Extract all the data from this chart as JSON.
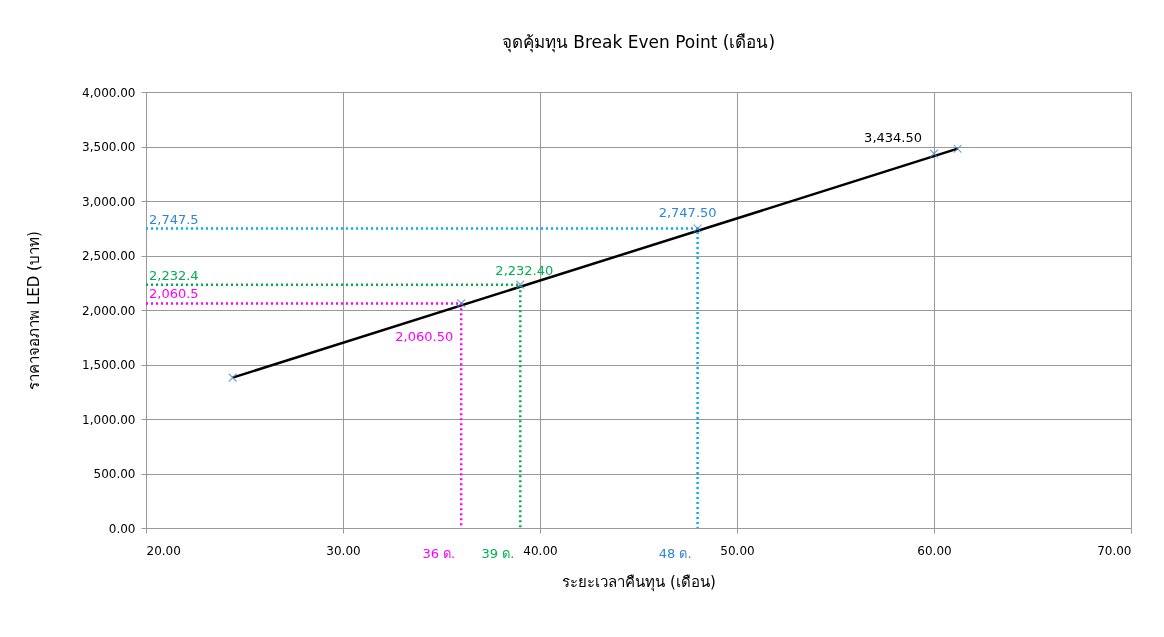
{
  "chart_data": {
    "type": "scatter",
    "title": "จุดคุ้มทุน Break Even Point (เดือน)",
    "xlabel": "ระยะเวลาคืนทุน (เดือน)",
    "ylabel": "ราคาจอภาพ LED (บาท)",
    "xlim": [
      20,
      70
    ],
    "xticks": [
      {
        "value": 20,
        "label": "20.00"
      },
      {
        "value": 30,
        "label": "30.00"
      },
      {
        "value": 40,
        "label": "40.00"
      },
      {
        "value": 50,
        "label": "50.00"
      },
      {
        "value": 60,
        "label": "60.00"
      },
      {
        "value": 70,
        "label": "70.00"
      }
    ],
    "ylim": [
      0,
      4000
    ],
    "yticks": [
      {
        "value": 0,
        "label": "0.00"
      },
      {
        "value": 500,
        "label": "500.00"
      },
      {
        "value": 1000,
        "label": "1,000.00"
      },
      {
        "value": 1500,
        "label": "1,500.00"
      },
      {
        "value": 2000,
        "label": "2,000.00"
      },
      {
        "value": 2500,
        "label": "2,500.00"
      },
      {
        "value": 3000,
        "label": "3,000.00"
      },
      {
        "value": 3500,
        "label": "3,500.00"
      },
      {
        "value": 4000,
        "label": "4,000.00"
      }
    ],
    "grid": true,
    "series": [
      {
        "type": "line",
        "color": "#000000",
        "x": [
          24.4,
          61.2
        ],
        "values": [
          1380,
          3480
        ],
        "line_style": "solid",
        "marker": "none"
      },
      {
        "type": "line",
        "color": "#ff00ff",
        "x": [
          20,
          36,
          36
        ],
        "values": [
          2060.5,
          2060.5,
          0
        ],
        "line_style": "dotted",
        "marker": "none",
        "value_labels": [
          null,
          "2,060.50",
          null
        ]
      },
      {
        "type": "line",
        "color": "#00b050",
        "x": [
          20,
          39,
          39
        ],
        "values": [
          2232.4,
          2232.4,
          0
        ],
        "line_style": "dotted",
        "marker": "none",
        "value_labels": [
          null,
          "2,232.40",
          null
        ]
      },
      {
        "type": "line",
        "color": "#00b0f0",
        "x": [
          20,
          48,
          48
        ],
        "values": [
          2747.5,
          2747.5,
          0
        ],
        "line_style": "dotted",
        "marker": "none",
        "value_labels": [
          null,
          "2,747.50",
          null
        ]
      },
      {
        "color": "#4a7ebb",
        "x": [
          24.4,
          36,
          39,
          48,
          60,
          61.2
        ],
        "values": [
          1380,
          2060.5,
          2232.4,
          2747.5,
          3434.5,
          3480
        ],
        "marker": "cross",
        "value_labels": [
          null,
          null,
          null,
          null,
          "3,434.50",
          null
        ]
      }
    ],
    "annotations": [
      {
        "text": "2,747.5",
        "x": 20,
        "y": 2747.5
      },
      {
        "text": "2,232.4",
        "x": 20,
        "y": 2232.4
      },
      {
        "text": "2,060.5",
        "x": 20,
        "y": 2060.5
      },
      {
        "text": "36 ด.",
        "x": 36,
        "y": 0
      },
      {
        "text": "39 ด.",
        "x": 39,
        "y": 0
      },
      {
        "text": "48 ด.",
        "x": 48,
        "y": 0
      }
    ]
  }
}
